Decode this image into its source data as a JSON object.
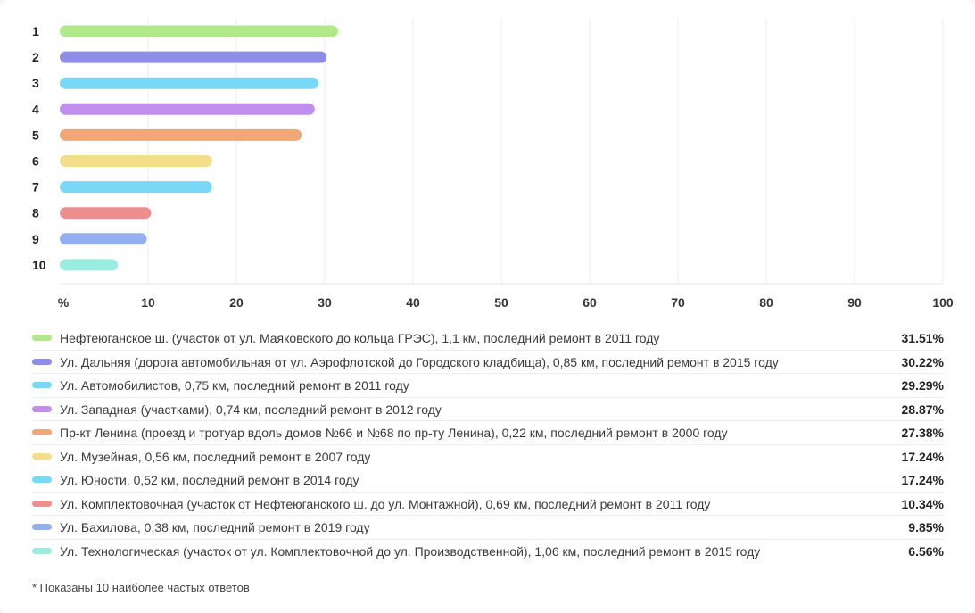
{
  "chart_data": {
    "type": "bar",
    "orientation": "horizontal",
    "categories": [
      "1",
      "2",
      "3",
      "4",
      "5",
      "6",
      "7",
      "8",
      "9",
      "10"
    ],
    "values": [
      31.51,
      30.22,
      29.29,
      28.87,
      27.38,
      17.24,
      17.24,
      10.34,
      9.85,
      6.56
    ],
    "value_labels": [
      "31.51%",
      "30.22%",
      "29.29%",
      "28.87%",
      "27.38%",
      "17.24%",
      "17.24%",
      "10.34%",
      "9.85%",
      "6.56%"
    ],
    "colors": [
      "#b0e88a",
      "#8e8ee8",
      "#78d8f6",
      "#c08eed",
      "#f0a878",
      "#f5de8a",
      "#78d8f6",
      "#ee8f8f",
      "#93aff0",
      "#99ecdf"
    ],
    "series_labels": [
      "Нефтеюганское ш. (участок от ул. Маяковского до кольца ГРЭС), 1,1 км, последний ремонт в 2011 году",
      "Ул. Дальняя (дорога автомобильная от ул. Аэрофлотской до Городского кладбища), 0,85 км, последний ремонт в 2015 году",
      "Ул. Автомобилистов, 0,75 км, последний ремонт в 2011 году",
      "Ул. Западная (участками), 0,74 км, последний ремонт в 2012 году",
      "Пр-кт Ленина (проезд и тротуар вдоль домов №66 и №68 по пр-ту Ленина), 0,22 км, последний ремонт в 2000 году",
      "Ул. Музейная, 0,56 км, последний ремонт в 2007 году",
      "Ул. Юности, 0,52 км, последний ремонт в 2014 году",
      "Ул. Комплектовочная (участок от Нефтеюганского ш. до ул. Монтажной), 0,69 км, последний ремонт в 2011 году",
      "Ул. Бахилова, 0,38 км, последний ремонт в 2019 году",
      "Ул. Технологическая (участок от ул. Комплектовочной до ул. Производственной), 1,06 км, последний ремонт в 2015 году"
    ],
    "xlim": [
      0,
      100
    ],
    "xticks": [
      "%",
      "10",
      "20",
      "30",
      "40",
      "50",
      "60",
      "70",
      "80",
      "90",
      "100"
    ],
    "grid": true,
    "legend_position": "bottom"
  },
  "footnote": "* Показаны 10 наиболее частых ответов"
}
